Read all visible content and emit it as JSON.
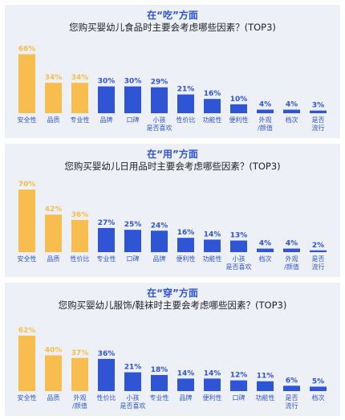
{
  "colors": {
    "gold": "#f7bd4f",
    "blue": "#2f55d4",
    "panel_bg": "#eef0f8"
  },
  "chart_data": [
    {
      "type": "bar",
      "title": "在“吃”方面",
      "subtitle": "您购买婴幼儿食品时主要会考虑哪些因素？(TOP3)",
      "categories": [
        [
          "安全性"
        ],
        [
          "品质"
        ],
        [
          "专业性"
        ],
        [
          "品牌"
        ],
        [
          "口碑"
        ],
        [
          "小孩",
          "是否喜欢"
        ],
        [
          "性价比"
        ],
        [
          "功能性"
        ],
        [
          "便利性"
        ],
        [
          "外观",
          "/颜值"
        ],
        [
          "档次"
        ],
        [
          "是否",
          "流行"
        ]
      ],
      "values": [
        66,
        34,
        34,
        30,
        30,
        29,
        21,
        16,
        10,
        4,
        4,
        3
      ],
      "highlight_count": 3,
      "unit": "%",
      "ylim": [
        0,
        70
      ]
    },
    {
      "type": "bar",
      "title": "在“用”方面",
      "subtitle": "您购买婴幼儿日用品时主要会考虑哪些因素？(TOP3)",
      "categories": [
        [
          "安全性"
        ],
        [
          "品质"
        ],
        [
          "性价比"
        ],
        [
          "专业性"
        ],
        [
          "口碑"
        ],
        [
          "品牌"
        ],
        [
          "便利性"
        ],
        [
          "功能性"
        ],
        [
          "小孩",
          "是否喜欢"
        ],
        [
          "档次"
        ],
        [
          "外观",
          "/颜值"
        ],
        [
          "是否",
          "流行"
        ]
      ],
      "values": [
        70,
        42,
        36,
        27,
        25,
        24,
        16,
        14,
        13,
        4,
        4,
        2
      ],
      "highlight_count": 3,
      "unit": "%",
      "ylim": [
        0,
        70
      ]
    },
    {
      "type": "bar",
      "title": "在“穿”方面",
      "subtitle": "您购买婴幼儿服饰/鞋袜时主要会考虑哪些因素？(TOP3)",
      "categories": [
        [
          "安全性"
        ],
        [
          "品质"
        ],
        [
          "外观",
          "/颜值"
        ],
        [
          "性价比"
        ],
        [
          "小孩",
          "是否喜欢"
        ],
        [
          "专业性"
        ],
        [
          "品牌"
        ],
        [
          "便利性"
        ],
        [
          "口碑"
        ],
        [
          "功能性"
        ],
        [
          "是否",
          "流行"
        ],
        [
          "档次"
        ]
      ],
      "values": [
        62,
        40,
        37,
        36,
        21,
        18,
        14,
        14,
        12,
        11,
        6,
        5
      ],
      "highlight_count": 3,
      "unit": "%",
      "ylim": [
        0,
        70
      ]
    }
  ]
}
